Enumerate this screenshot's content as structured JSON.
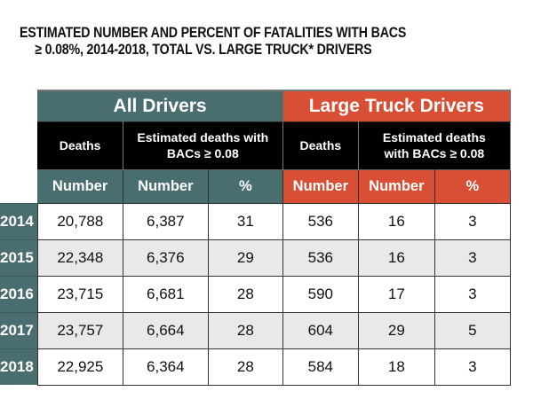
{
  "title": {
    "line1": "ESTIMATED NUMBER AND PERCENT OF FATALITIES WITH BACS",
    "line2": "≥ 0.08%, 2014-2018, TOTAL VS. LARGE TRUCK* DRIVERS"
  },
  "colors": {
    "all_drivers": "#4a6e70",
    "large_truck": "#d84f35",
    "subheader": "#000000",
    "alt_row": "#e8e9e8"
  },
  "groups": {
    "all_drivers": "All Drivers",
    "large_truck": "Large Truck Drivers"
  },
  "subheaders": {
    "all_deaths": "Deaths",
    "all_est_line1": "Estimated deaths with",
    "all_est_line2": "BACs ≥ 0.08",
    "lt_deaths": "Deaths",
    "lt_est_line1": "Estimated deaths",
    "lt_est_line2": "with BACs ≥ 0.08"
  },
  "columns": [
    "Number",
    "Number",
    "%",
    "Number",
    "Number",
    "%"
  ],
  "rows": [
    {
      "year": "2014",
      "all_deaths": "20,788",
      "all_bac_number": "6,387",
      "all_bac_pct": "31",
      "lt_deaths": "536",
      "lt_bac_number": "16",
      "lt_bac_pct": "3"
    },
    {
      "year": "2015",
      "all_deaths": "22,348",
      "all_bac_number": "6,376",
      "all_bac_pct": "29",
      "lt_deaths": "536",
      "lt_bac_number": "16",
      "lt_bac_pct": "3"
    },
    {
      "year": "2016",
      "all_deaths": "23,715",
      "all_bac_number": "6,681",
      "all_bac_pct": "28",
      "lt_deaths": "590",
      "lt_bac_number": "17",
      "lt_bac_pct": "3"
    },
    {
      "year": "2017",
      "all_deaths": "23,757",
      "all_bac_number": "6,664",
      "all_bac_pct": "28",
      "lt_deaths": "604",
      "lt_bac_number": "29",
      "lt_bac_pct": "5"
    },
    {
      "year": "2018",
      "all_deaths": "22,925",
      "all_bac_number": "6,364",
      "all_bac_pct": "28",
      "lt_deaths": "584",
      "lt_bac_number": "18",
      "lt_bac_pct": "3"
    }
  ]
}
